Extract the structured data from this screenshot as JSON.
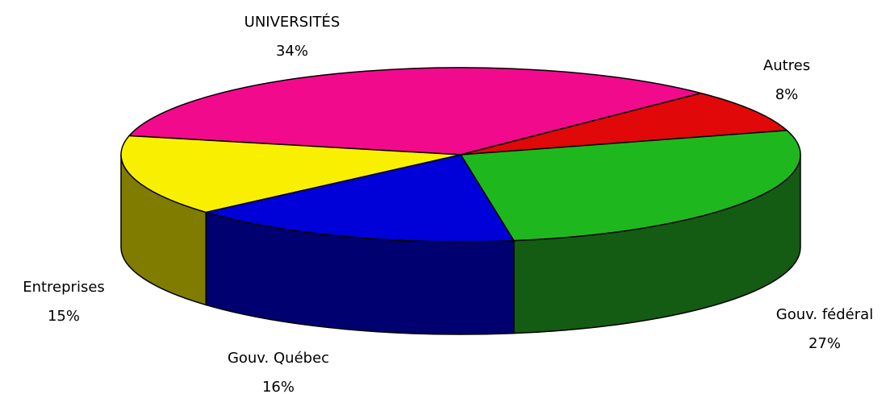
{
  "chart_data": {
    "type": "pie3d",
    "categories": [
      "UNIVERSITÉS",
      "Autres",
      "Gouv. fédéral",
      "Gouv. Québec",
      "Entreprises"
    ],
    "values": [
      34,
      8,
      27,
      16,
      15
    ],
    "value_labels": [
      "34%",
      "8%",
      "27%",
      "16%",
      "15%"
    ],
    "colors": [
      "#f20a8c",
      "#e00808",
      "#1eb81e",
      "#0000d8",
      "#f8f000"
    ],
    "side_colors": [
      "#800550",
      "#800404",
      "#145c14",
      "#000070",
      "#807c00"
    ]
  }
}
